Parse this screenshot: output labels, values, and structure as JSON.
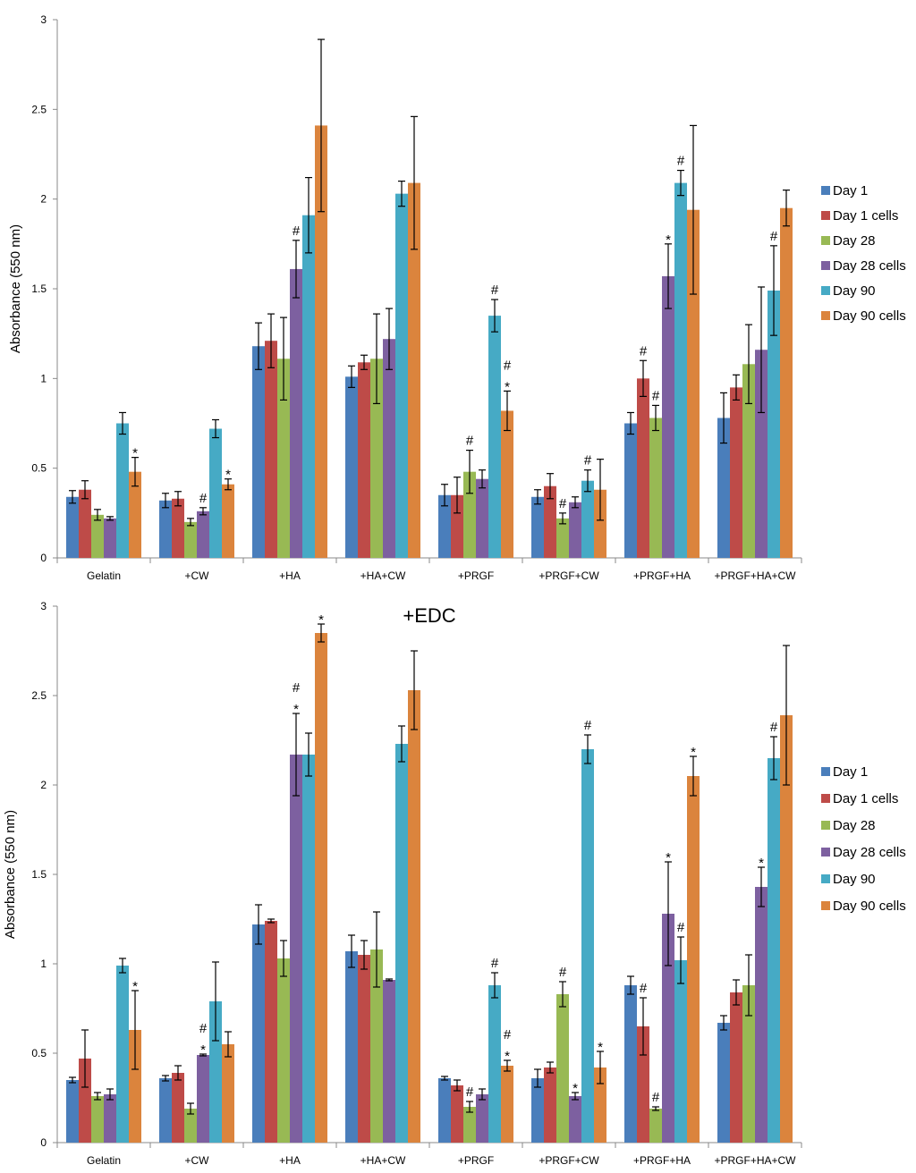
{
  "chart_data": [
    {
      "type": "bar",
      "title": "",
      "xlabel": "",
      "ylabel": "Absorbance (550 nm)",
      "ylim": [
        0,
        3
      ],
      "yticks": [
        "0",
        "0.5",
        "1",
        "1.5",
        "2",
        "2.5",
        "3"
      ],
      "categories": [
        "Gelatin",
        "+CW",
        "+HA",
        "+HA+CW",
        "+PRGF",
        "+PRGF+CW",
        "+PRGF+HA",
        "+PRGF+HA+CW"
      ],
      "legend_position": "right",
      "series": [
        {
          "name": "Day 1",
          "color": "#4A7EBB",
          "values": [
            0.34,
            0.32,
            1.18,
            1.01,
            0.35,
            0.34,
            0.75,
            0.78
          ],
          "errors": [
            0.035,
            0.04,
            0.13,
            0.06,
            0.06,
            0.04,
            0.06,
            0.14
          ]
        },
        {
          "name": "Day 1 cells",
          "color": "#BE4B48",
          "values": [
            0.38,
            0.33,
            1.21,
            1.09,
            0.35,
            0.4,
            1.0,
            0.95
          ],
          "errors": [
            0.05,
            0.04,
            0.15,
            0.04,
            0.1,
            0.07,
            0.1,
            0.07
          ]
        },
        {
          "name": "Day 28",
          "color": "#98B954",
          "values": [
            0.24,
            0.2,
            1.11,
            1.11,
            0.48,
            0.22,
            0.78,
            1.08
          ],
          "errors": [
            0.03,
            0.02,
            0.23,
            0.25,
            0.12,
            0.03,
            0.07,
            0.22
          ]
        },
        {
          "name": "Day 28 cells",
          "color": "#7D60A0",
          "values": [
            0.22,
            0.26,
            1.61,
            1.22,
            0.44,
            0.31,
            1.57,
            1.16
          ],
          "errors": [
            0.01,
            0.02,
            0.16,
            0.17,
            0.05,
            0.03,
            0.18,
            0.35
          ]
        },
        {
          "name": "Day 90",
          "color": "#46AAC5",
          "values": [
            0.75,
            0.72,
            1.91,
            2.03,
            1.35,
            0.43,
            2.09,
            1.49
          ],
          "errors": [
            0.06,
            0.05,
            0.21,
            0.07,
            0.09,
            0.06,
            0.07,
            0.25
          ]
        },
        {
          "name": "Day 90 cells",
          "color": "#DB843D",
          "values": [
            0.48,
            0.41,
            2.41,
            2.09,
            0.82,
            0.38,
            1.94,
            1.95
          ],
          "errors": [
            0.08,
            0.03,
            0.48,
            0.37,
            0.11,
            0.17,
            0.47,
            0.1
          ]
        }
      ],
      "annotations": [
        {
          "category": 0,
          "series": 5,
          "text": "*"
        },
        {
          "category": 1,
          "series": 5,
          "text": "*"
        },
        {
          "category": 1,
          "series": 3,
          "text": "#"
        },
        {
          "category": 2,
          "series": 3,
          "text": "#"
        },
        {
          "category": 4,
          "series": 2,
          "text": "#"
        },
        {
          "category": 4,
          "series": 4,
          "text": "#"
        },
        {
          "category": 4,
          "series": 5,
          "text": "*"
        },
        {
          "category": 4,
          "series": 5,
          "text": "#"
        },
        {
          "category": 5,
          "series": 2,
          "text": "#"
        },
        {
          "category": 5,
          "series": 4,
          "text": "#"
        },
        {
          "category": 6,
          "series": 1,
          "text": "#"
        },
        {
          "category": 6,
          "series": 2,
          "text": "#"
        },
        {
          "category": 6,
          "series": 3,
          "text": "*"
        },
        {
          "category": 6,
          "series": 4,
          "text": "#"
        },
        {
          "category": 7,
          "series": 4,
          "text": "#"
        }
      ]
    },
    {
      "type": "bar",
      "title": "+EDC",
      "xlabel": "",
      "ylabel": "Absorbance (550 nm)",
      "ylim": [
        0,
        3
      ],
      "yticks": [
        "0",
        "0.5",
        "1",
        "1.5",
        "2",
        "2.5",
        "3"
      ],
      "categories": [
        "Gelatin",
        "+CW",
        "+HA",
        "+HA+CW",
        "+PRGF",
        "+PRGF+CW",
        "+PRGF+HA",
        "+PRGF+HA+CW"
      ],
      "legend_position": "right",
      "series": [
        {
          "name": "Day 1",
          "color": "#4A7EBB",
          "values": [
            0.35,
            0.36,
            1.22,
            1.07,
            0.36,
            0.36,
            0.88,
            0.67
          ],
          "errors": [
            0.015,
            0.015,
            0.11,
            0.09,
            0.01,
            0.05,
            0.05,
            0.04
          ]
        },
        {
          "name": "Day 1 cells",
          "color": "#BE4B48",
          "values": [
            0.47,
            0.39,
            1.24,
            1.05,
            0.32,
            0.42,
            0.65,
            0.84
          ],
          "errors": [
            0.16,
            0.04,
            0.01,
            0.08,
            0.03,
            0.03,
            0.16,
            0.07
          ]
        },
        {
          "name": "Day 28",
          "color": "#98B954",
          "values": [
            0.26,
            0.19,
            1.03,
            1.08,
            0.2,
            0.83,
            0.19,
            0.88
          ],
          "errors": [
            0.02,
            0.03,
            0.1,
            0.21,
            0.03,
            0.07,
            0.01,
            0.17
          ]
        },
        {
          "name": "Day 28 cells",
          "color": "#7D60A0",
          "values": [
            0.27,
            0.49,
            2.17,
            0.91,
            0.27,
            0.26,
            1.28,
            1.43
          ],
          "errors": [
            0.03,
            0.005,
            0.23,
            0.005,
            0.03,
            0.02,
            0.29,
            0.11
          ]
        },
        {
          "name": "Day 90",
          "color": "#46AAC5",
          "values": [
            0.99,
            0.79,
            2.17,
            2.23,
            0.88,
            2.2,
            1.02,
            2.15
          ],
          "errors": [
            0.04,
            0.22,
            0.12,
            0.1,
            0.07,
            0.08,
            0.13,
            0.12
          ]
        },
        {
          "name": "Day 90 cells",
          "color": "#DB843D",
          "values": [
            0.63,
            0.55,
            2.85,
            2.53,
            0.43,
            0.42,
            2.05,
            2.39
          ],
          "errors": [
            0.22,
            0.07,
            0.05,
            0.22,
            0.03,
            0.09,
            0.11,
            0.39
          ]
        }
      ],
      "annotations": [
        {
          "category": 0,
          "series": 5,
          "text": "*"
        },
        {
          "category": 1,
          "series": 3,
          "text": "*"
        },
        {
          "category": 1,
          "series": 3,
          "text": "#"
        },
        {
          "category": 2,
          "series": 3,
          "text": "*"
        },
        {
          "category": 2,
          "series": 3,
          "text": "#"
        },
        {
          "category": 2,
          "series": 5,
          "text": "*"
        },
        {
          "category": 4,
          "series": 2,
          "text": "#"
        },
        {
          "category": 4,
          "series": 4,
          "text": "#"
        },
        {
          "category": 4,
          "series": 5,
          "text": "*"
        },
        {
          "category": 4,
          "series": 5,
          "text": "#"
        },
        {
          "category": 5,
          "series": 2,
          "text": "#"
        },
        {
          "category": 5,
          "series": 3,
          "text": "*"
        },
        {
          "category": 5,
          "series": 4,
          "text": "#"
        },
        {
          "category": 5,
          "series": 5,
          "text": "*"
        },
        {
          "category": 6,
          "series": 1,
          "text": "#"
        },
        {
          "category": 6,
          "series": 2,
          "text": "#"
        },
        {
          "category": 6,
          "series": 3,
          "text": "*"
        },
        {
          "category": 6,
          "series": 4,
          "text": "#"
        },
        {
          "category": 6,
          "series": 5,
          "text": "*"
        },
        {
          "category": 7,
          "series": 3,
          "text": "*"
        },
        {
          "category": 7,
          "series": 4,
          "text": "#"
        }
      ]
    }
  ]
}
